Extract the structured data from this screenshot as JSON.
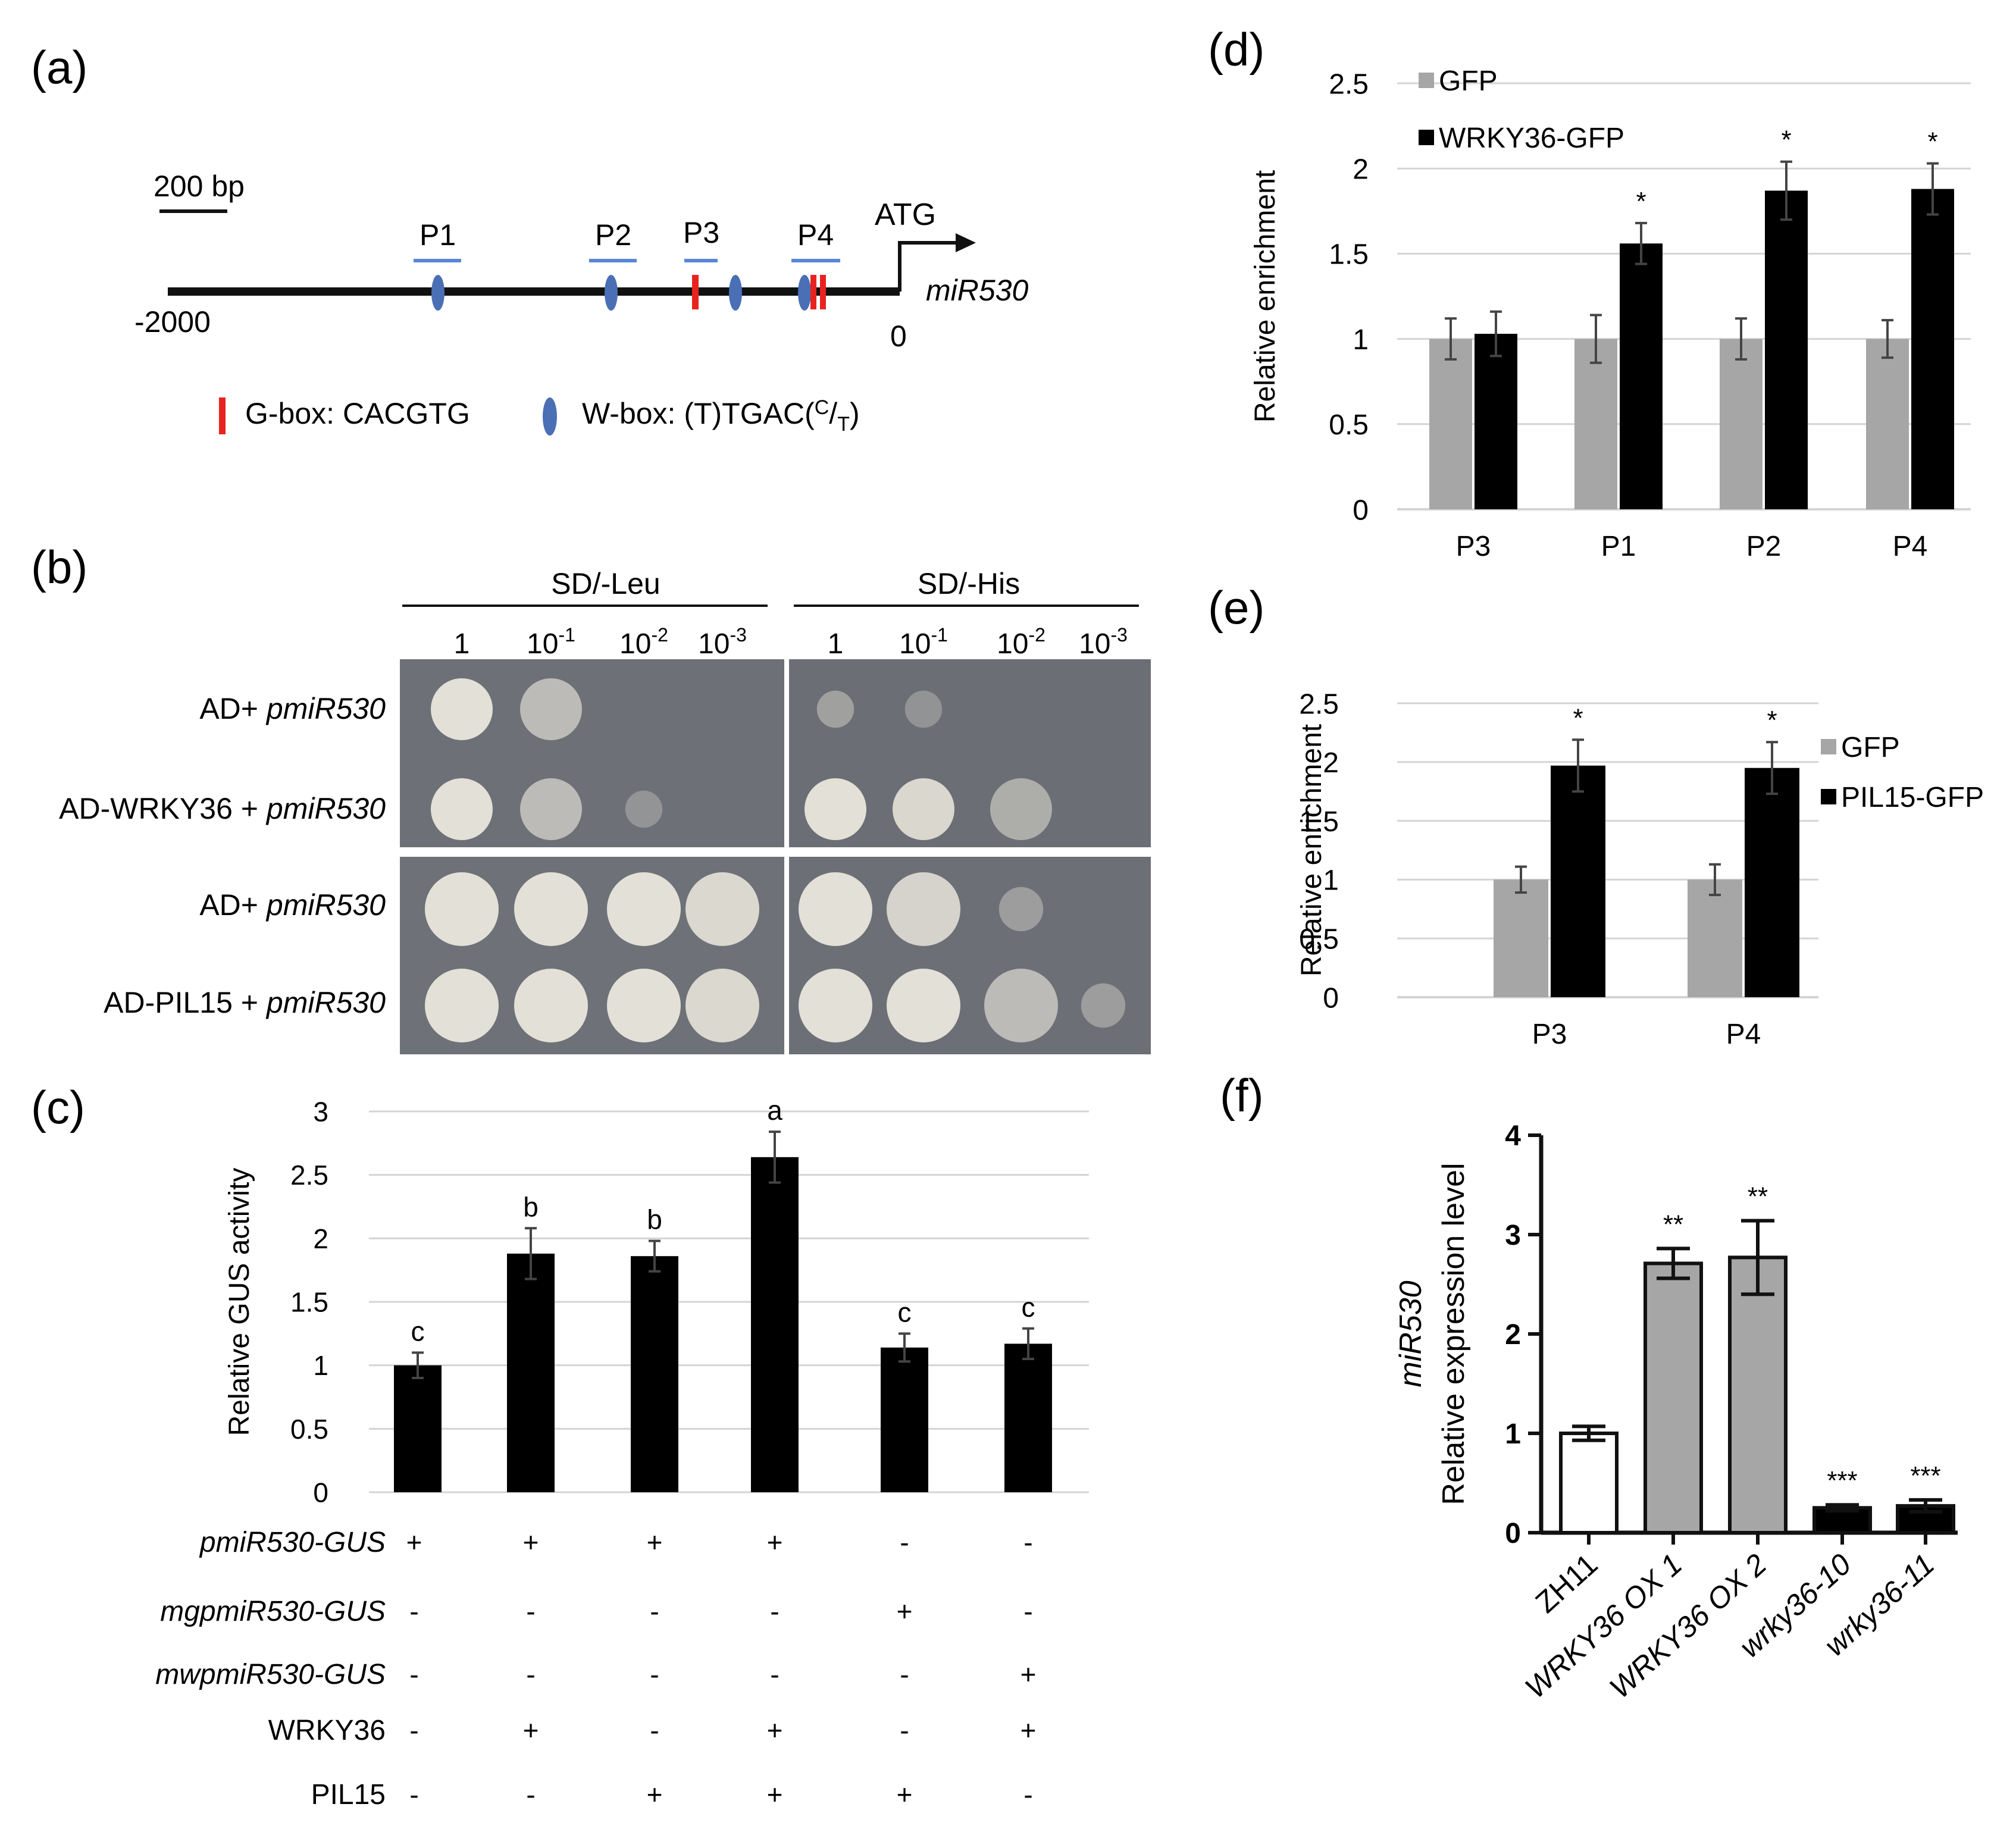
{
  "panels": {
    "a": {
      "letter": "(a)",
      "scale": "200 bp",
      "start_label": "-2000",
      "end_label": "0",
      "atg": "ATG",
      "gene": "miR530",
      "probes": [
        "P1",
        "P2",
        "P3",
        "P4"
      ],
      "legend_gbox": "G-box: CACGTG",
      "legend_wbox_main": "W-box: (T)TGAC(",
      "legend_wbox_c": "C",
      "legend_wbox_t": "T",
      "legend_wbox_end": ")",
      "colors": {
        "gbox": "#e8231f",
        "wbox": "#4a6fb5",
        "probe": "#5a86d6"
      }
    },
    "b": {
      "letter": "(b)",
      "media": [
        "SD/-Leu",
        "SD/-His"
      ],
      "dilutions": [
        {
          "base": "1",
          "exp": ""
        },
        {
          "base": "10",
          "exp": "-1"
        },
        {
          "base": "10",
          "exp": "-2"
        },
        {
          "base": "10",
          "exp": "-3"
        }
      ],
      "rows": [
        {
          "prefix": "AD+ ",
          "italic": "pmiR530"
        },
        {
          "prefix": "AD-WRKY36 + ",
          "italic": "pmiR530"
        },
        {
          "prefix": "AD+ ",
          "italic": "pmiR530"
        },
        {
          "prefix": "AD-PIL15 + ",
          "italic": "pmiR530"
        }
      ]
    }
  },
  "chart_data": [
    {
      "id": "c",
      "letter": "(c)",
      "type": "bar",
      "ylabel": "Relative GUS activity",
      "ylim": [
        0,
        3
      ],
      "yticks": [
        "0",
        "0.5",
        "1",
        "1.5",
        "2",
        "2.5",
        "3"
      ],
      "values": [
        1.0,
        1.88,
        1.86,
        2.64,
        1.14,
        1.17
      ],
      "errors": [
        0.1,
        0.2,
        0.12,
        0.2,
        0.11,
        0.12
      ],
      "letters": [
        "c",
        "b",
        "b",
        "a",
        "c",
        "c"
      ],
      "color": "#000000",
      "grid": true,
      "table": [
        {
          "label": "pmiR530-GUS",
          "italic": true,
          "values": [
            "+",
            "+",
            "+",
            "+",
            "-",
            "-"
          ]
        },
        {
          "label": "mgpmiR530-GUS",
          "italic": true,
          "values": [
            "-",
            "-",
            "-",
            "-",
            "+",
            "-"
          ]
        },
        {
          "label": "mwpmiR530-GUS",
          "italic": true,
          "values": [
            "-",
            "-",
            "-",
            "-",
            "-",
            "+"
          ]
        },
        {
          "label": "WRKY36",
          "italic": false,
          "values": [
            "-",
            "+",
            "-",
            "+",
            "-",
            "+"
          ]
        },
        {
          "label": "PIL15",
          "italic": false,
          "values": [
            "-",
            "-",
            "+",
            "+",
            "+",
            "-"
          ]
        }
      ]
    },
    {
      "id": "d",
      "letter": "(d)",
      "type": "bar",
      "ylabel": "Relative enrichment",
      "ylim": [
        0,
        2.5
      ],
      "yticks": [
        "0",
        "0.5",
        "1",
        "1.5",
        "2",
        "2.5"
      ],
      "categories": [
        "P3",
        "P1",
        "P2",
        "P4"
      ],
      "series": [
        {
          "name": "GFP",
          "color": "#a6a6a6",
          "values": [
            1.0,
            1.0,
            1.0,
            1.0
          ],
          "errors": [
            0.12,
            0.14,
            0.12,
            0.11
          ]
        },
        {
          "name": "WRKY36-GFP",
          "color": "#000000",
          "values": [
            1.03,
            1.56,
            1.87,
            1.88
          ],
          "errors": [
            0.13,
            0.12,
            0.17,
            0.15
          ]
        }
      ],
      "significance": [
        "",
        "*",
        "*",
        "*"
      ],
      "legend": "top-left",
      "grid": true
    },
    {
      "id": "e",
      "letter": "(e)",
      "type": "bar",
      "ylabel": "Relative enrichment",
      "ylim": [
        0,
        2.5
      ],
      "yticks": [
        "0",
        "0.5",
        "1",
        "1.5",
        "2",
        "2.5"
      ],
      "categories": [
        "P3",
        "P4"
      ],
      "series": [
        {
          "name": "GFP",
          "color": "#a6a6a6",
          "values": [
            1.0,
            1.0
          ],
          "errors": [
            0.11,
            0.13
          ]
        },
        {
          "name": "PIL15-GFP",
          "color": "#000000",
          "values": [
            1.97,
            1.95
          ],
          "errors": [
            0.22,
            0.22
          ]
        }
      ],
      "significance": [
        "*",
        "*"
      ],
      "legend": "right",
      "grid": true
    },
    {
      "id": "f",
      "letter": "(f)",
      "type": "bar",
      "ylabel_italic": "miR530",
      "ylabel": "Relative expression level",
      "ylim": [
        0,
        4
      ],
      "yticks": [
        "0",
        "1",
        "2",
        "3",
        "4"
      ],
      "categories": [
        {
          "name": "ZH11",
          "italic": false
        },
        {
          "name": "WRKY36 OX 1",
          "italic": true
        },
        {
          "name": "WRKY36 OX 2",
          "italic": true
        },
        {
          "name": "wrky36-10",
          "italic": true
        },
        {
          "name": "wrky36-11",
          "italic": true
        }
      ],
      "values": [
        1.0,
        2.71,
        2.77,
        0.25,
        0.27
      ],
      "errors": [
        0.07,
        0.15,
        0.37,
        0.03,
        0.06
      ],
      "colors": [
        "#ffffff",
        "#a6a6a6",
        "#a6a6a6",
        "#000000",
        "#000000"
      ],
      "significance": [
        "",
        "**",
        "**",
        "***",
        "***"
      ],
      "grid": false
    }
  ]
}
